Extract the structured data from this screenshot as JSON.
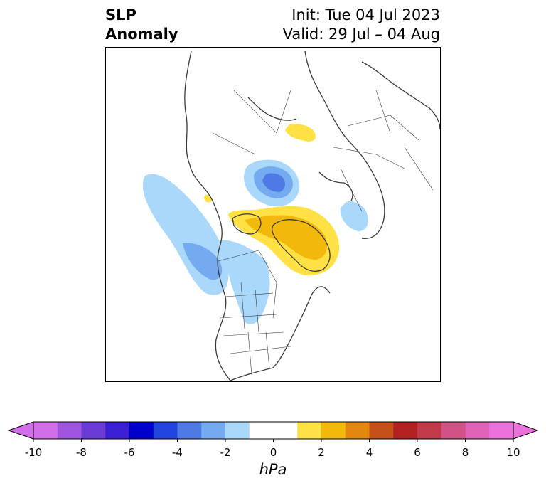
{
  "title": {
    "left_line1": "SLP",
    "left_line2": "Anomaly",
    "init": "Init: Tue 04 Jul 2023",
    "valid": "Valid: 29 Jul – 04 Aug"
  },
  "colorbar": {
    "units": "hPa",
    "ticks": [
      "-10",
      "-8",
      "-6",
      "-4",
      "-2",
      "0",
      "2",
      "4",
      "6",
      "8",
      "10"
    ],
    "levels": [
      -10,
      -9,
      -8,
      -7,
      -6,
      -5,
      -4,
      -3,
      -2,
      -1,
      1,
      2,
      3,
      4,
      5,
      6,
      7,
      8,
      9,
      10
    ],
    "colors": [
      "#d26fe8",
      "#9f55e0",
      "#6b3bd8",
      "#3b1fd4",
      "#0000cc",
      "#2344dd",
      "#4f7ae5",
      "#74aaf0",
      "#a9d8fa",
      "#ffffff",
      "#ffe145",
      "#f2b80c",
      "#e28810",
      "#c65118",
      "#b22222",
      "#c03a4b",
      "#d05287",
      "#de62b6",
      "#eb72dd"
    ],
    "extend": "both"
  },
  "map": {
    "projection": "north polar stereographic",
    "region": "Northern Hemisphere (Arctic, North America, Eurasia)",
    "features": [
      "coastlines",
      "country borders",
      "US state and Canadian province borders"
    ]
  }
}
